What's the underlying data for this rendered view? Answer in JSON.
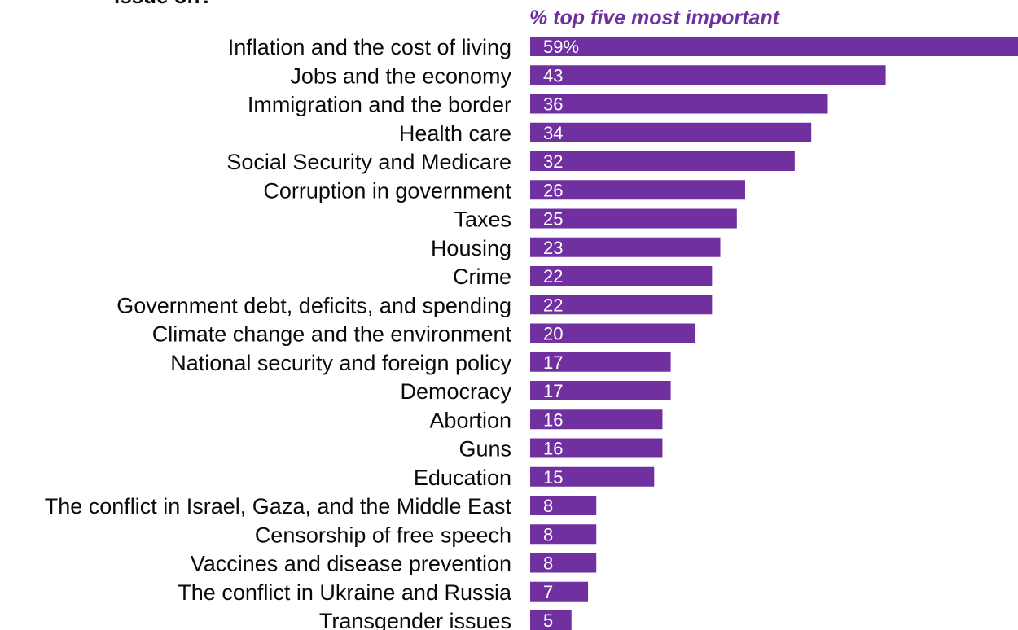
{
  "chart_data": {
    "type": "bar",
    "orientation": "horizontal",
    "title_fragment": "issue on?",
    "subtitle": "% top five most important",
    "categories": [
      "Inflation and the cost of living",
      "Jobs and the economy",
      "Immigration and the border",
      "Health care",
      "Social Security and Medicare",
      "Corruption in government",
      "Taxes",
      "Housing",
      "Crime",
      "Government debt, deficits, and spending",
      "Climate change and the environment",
      "National security and foreign policy",
      "Democracy",
      "Abortion",
      "Guns",
      "Education",
      "The conflict in Israel, Gaza, and the Middle East",
      "Censorship of free speech",
      "Vaccines and disease prevention",
      "The conflict in Ukraine and Russia",
      "Transgender issues"
    ],
    "values": [
      59,
      43,
      36,
      34,
      32,
      26,
      25,
      23,
      22,
      22,
      20,
      17,
      17,
      16,
      16,
      15,
      8,
      8,
      8,
      7,
      5
    ],
    "value_labels": [
      "59%",
      "43",
      "36",
      "34",
      "32",
      "26",
      "25",
      "23",
      "22",
      "22",
      "20",
      "17",
      "17",
      "16",
      "16",
      "15",
      "8",
      "8",
      "8",
      "7",
      "5"
    ],
    "xlim": [
      0,
      59
    ],
    "grid": false,
    "legend": "none",
    "colors": {
      "bar": "#7030a0",
      "subtitle": "#7030a0",
      "value_text": "#ffffff",
      "category_text": "#0a0a0a"
    }
  }
}
